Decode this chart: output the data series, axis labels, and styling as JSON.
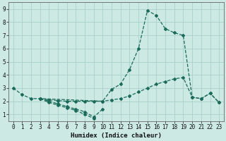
{
  "xlabel": "Humidex (Indice chaleur)",
  "xlim": [
    -0.5,
    23.5
  ],
  "ylim": [
    0.5,
    9.5
  ],
  "xticks": [
    0,
    1,
    2,
    3,
    4,
    5,
    6,
    7,
    8,
    9,
    10,
    11,
    12,
    13,
    14,
    15,
    16,
    17,
    18,
    19,
    20,
    21,
    22,
    23
  ],
  "yticks": [
    1,
    2,
    3,
    4,
    5,
    6,
    7,
    8,
    9
  ],
  "bg_color": "#cce9e4",
  "grid_color": "#aacfc9",
  "line_color": "#1a6b5a",
  "lines": [
    {
      "x": [
        0,
        1,
        2,
        3,
        10,
        11,
        12,
        13,
        14,
        15,
        16,
        17,
        18,
        19,
        20,
        21,
        22,
        23
      ],
      "y": [
        3.0,
        2.5,
        2.2,
        2.2,
        2.0,
        2.9,
        3.3,
        4.4,
        6.0,
        8.9,
        8.5,
        7.5,
        7.2,
        7.0,
        2.3,
        2.2,
        2.6,
        1.9
      ]
    },
    {
      "x": [
        3,
        4,
        5,
        6,
        7,
        8,
        9,
        10,
        11,
        12,
        13,
        14,
        15,
        16,
        17,
        18,
        19,
        20,
        21,
        22,
        23
      ],
      "y": [
        2.2,
        2.1,
        2.05,
        2.0,
        2.0,
        2.0,
        2.0,
        2.0,
        2.1,
        2.2,
        2.4,
        2.7,
        3.0,
        3.3,
        3.5,
        3.7,
        3.8,
        2.3,
        2.2,
        2.6,
        1.9
      ]
    },
    {
      "x": [
        3,
        4,
        5,
        6,
        7,
        8,
        9,
        10
      ],
      "y": [
        2.2,
        2.0,
        1.8,
        1.6,
        1.4,
        1.2,
        0.8,
        1.4
      ]
    },
    {
      "x": [
        3,
        4,
        5,
        6,
        7,
        8,
        9
      ],
      "y": [
        2.2,
        1.9,
        1.7,
        1.5,
        1.3,
        1.0,
        0.7
      ]
    }
  ]
}
